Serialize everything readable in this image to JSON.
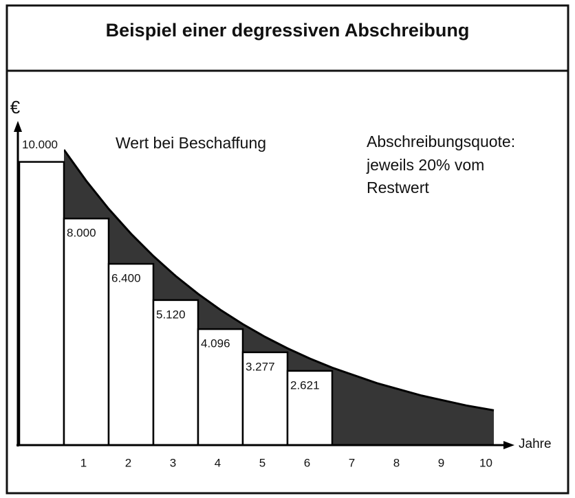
{
  "chart_data": {
    "type": "bar",
    "title": "Beispiel einer degressiven Abschreibung",
    "y_label": "€",
    "x_label": "Jahre",
    "annotations": [
      "Wert bei Beschaffung",
      "Abschreibungsquote:",
      "jeweils 20% vom",
      "Restwert"
    ],
    "categories": [
      null,
      "1",
      "2",
      "3",
      "4",
      "5",
      "6",
      "7",
      "8",
      "9",
      "10"
    ],
    "values": [
      10000,
      8000,
      6400,
      5120,
      4096,
      3277,
      2621,
      null,
      null,
      null,
      null
    ],
    "value_labels": [
      "10.000",
      "8.000",
      "6.400",
      "5.120",
      "4.096",
      "3.277",
      "2.621",
      null,
      null,
      null,
      null
    ],
    "color": "#ffffff",
    "ylim": [
      0,
      11350
    ]
  }
}
